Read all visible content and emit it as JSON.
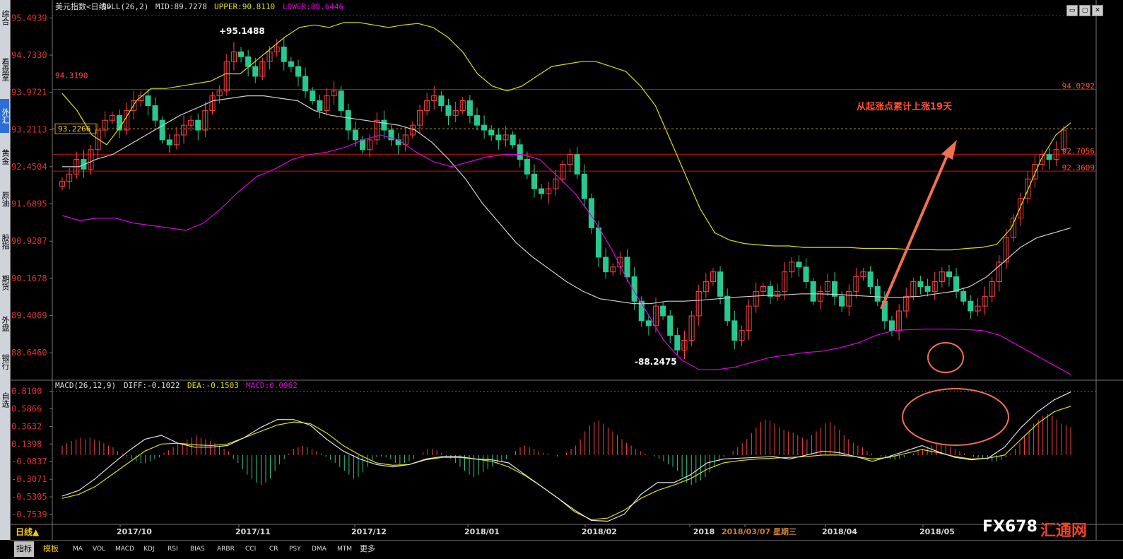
{
  "left_tabs": [
    "综合",
    "看盘室",
    "外汇",
    "黄金",
    "原油",
    "股指",
    "期货",
    "外盘",
    "银行",
    "自选"
  ],
  "left_active": 2,
  "main_header": {
    "name": "美元指数",
    "period": "<日线>",
    "boll": "BOLL(26,2)",
    "mid": "MID:89.7278",
    "upper": "UPPER:90.8110",
    "lower": "LOWER:88.6446"
  },
  "macd_header": {
    "name": "MACD(26,12,9)",
    "diff": "DIFF:-0.1022",
    "dea": "DEA:-0.1503",
    "macd": "MACD:0.0962"
  },
  "colors": {
    "up": "#ff4040",
    "down": "#26c98f",
    "upper": "#dede00",
    "mid": "#cfcfcf",
    "lower": "#e000e0",
    "hline": "#d01010",
    "arrow": "#f07050",
    "dea": "#e0e000",
    "diff": "#e0e0e0"
  },
  "chart_data": [
    {
      "type": "candlestick",
      "title": "美元指数<日线>",
      "ylim": [
        88.2,
        95.6
      ],
      "y_ticks": [
        "95.4939",
        "94.7330",
        "93.9721",
        "93.2113",
        "92.4504",
        "91.6895",
        "90.9287",
        "90.1678",
        "89.4069",
        "88.6460"
      ],
      "x_ticks": [
        "2017/10",
        "2017/11",
        "2017/12",
        "2018/01",
        "2018/02",
        "2018",
        "2018/03/07 星期三",
        "2018/04",
        "2018/05"
      ],
      "annotations": {
        "high": "95.1488",
        "low": "88.2475",
        "note": "从起涨点累计上涨19天",
        "level_left": "94.3190",
        "cursor_box": "93.2266",
        "right_levels": [
          "94.0292",
          "92.7056",
          "92.3609"
        ]
      },
      "closes": [
        92.15,
        92.3,
        92.6,
        92.4,
        92.8,
        93.2,
        93.4,
        93.5,
        93.2,
        93.6,
        93.8,
        93.9,
        93.7,
        93.4,
        93.0,
        92.9,
        93.1,
        93.3,
        93.4,
        93.2,
        93.6,
        93.9,
        94.0,
        94.6,
        94.8,
        94.7,
        94.5,
        94.3,
        94.6,
        94.8,
        94.9,
        94.6,
        94.5,
        94.3,
        94.0,
        93.8,
        93.6,
        93.9,
        94.0,
        93.6,
        93.2,
        93.0,
        92.8,
        93.0,
        93.4,
        93.2,
        93.0,
        92.9,
        93.1,
        93.3,
        93.6,
        93.8,
        93.9,
        93.7,
        93.5,
        93.6,
        93.8,
        93.5,
        93.3,
        93.2,
        93.1,
        93.0,
        93.1,
        92.9,
        92.6,
        92.3,
        92.0,
        91.9,
        92.0,
        92.2,
        92.5,
        92.7,
        92.3,
        91.8,
        91.2,
        90.6,
        90.3,
        90.4,
        90.6,
        90.2,
        89.7,
        89.3,
        89.2,
        89.6,
        89.4,
        89.0,
        88.7,
        88.9,
        89.4,
        89.9,
        90.1,
        90.3,
        89.8,
        89.3,
        88.9,
        89.1,
        89.6,
        89.9,
        90.0,
        89.8,
        89.9,
        90.3,
        90.5,
        90.4,
        90.1,
        89.7,
        89.9,
        90.1,
        89.8,
        89.6,
        89.9,
        90.2,
        90.3,
        90.0,
        89.7,
        89.3,
        89.1,
        89.5,
        89.8,
        90.1,
        90.0,
        89.9,
        90.1,
        90.3,
        90.2,
        89.9,
        89.7,
        89.5,
        89.6,
        89.8,
        90.1,
        90.5,
        91.0,
        91.4,
        91.8,
        92.2,
        92.5,
        92.7,
        92.6,
        92.8,
        93.2
      ],
      "upper_band": [
        93.95,
        93.6,
        93.1,
        92.9,
        93.3,
        93.8,
        94.05,
        94.05,
        94.1,
        94.15,
        94.2,
        94.35,
        94.35,
        94.6,
        94.85,
        95.1,
        95.3,
        95.35,
        95.3,
        95.4,
        95.4,
        95.35,
        95.3,
        95.35,
        95.38,
        95.3,
        95.1,
        94.8,
        94.35,
        94.1,
        94.0,
        94.1,
        94.3,
        94.5,
        94.55,
        94.6,
        94.6,
        94.5,
        94.4,
        94.1,
        93.7,
        93.0,
        92.3,
        91.6,
        91.1,
        90.95,
        90.88,
        90.85,
        90.83,
        90.83,
        90.8,
        90.8,
        90.8,
        90.8,
        90.78,
        90.78,
        90.78,
        90.76,
        90.76,
        90.75,
        90.75,
        90.78,
        90.8,
        90.86,
        91.2,
        91.9,
        92.6,
        93.1,
        93.35
      ],
      "mid_band": [
        92.45,
        92.45,
        92.6,
        92.7,
        92.9,
        93.1,
        93.3,
        93.5,
        93.65,
        93.8,
        93.85,
        93.9,
        93.9,
        93.85,
        93.8,
        93.6,
        93.5,
        93.45,
        93.4,
        93.35,
        93.3,
        93.2,
        92.95,
        92.6,
        92.2,
        91.7,
        91.3,
        90.9,
        90.6,
        90.35,
        90.1,
        89.9,
        89.75,
        89.7,
        89.65,
        89.65,
        89.7,
        89.7,
        89.72,
        89.75,
        89.78,
        89.8,
        89.82,
        89.83,
        89.85,
        89.85,
        89.84,
        89.82,
        89.8,
        89.78,
        89.78,
        89.8,
        89.85,
        89.9,
        90.0,
        90.2,
        90.5,
        90.8,
        91.0,
        91.1,
        91.2
      ],
      "lower_band": [
        91.45,
        91.35,
        91.4,
        91.4,
        91.3,
        91.25,
        91.2,
        91.15,
        91.3,
        91.6,
        91.95,
        92.25,
        92.4,
        92.6,
        92.7,
        92.75,
        92.85,
        93.0,
        93.1,
        93.0,
        92.75,
        92.55,
        92.45,
        92.55,
        92.65,
        92.7,
        92.7,
        92.6,
        92.25,
        91.9,
        91.4,
        90.8,
        90.1,
        89.5,
        88.9,
        88.5,
        88.3,
        88.3,
        88.35,
        88.45,
        88.55,
        88.6,
        88.65,
        88.68,
        88.75,
        88.85,
        89.0,
        89.1,
        89.12,
        89.13,
        89.13,
        89.12,
        89.1,
        89.0,
        88.8,
        88.6,
        88.4,
        88.2
      ]
    },
    {
      "type": "macd",
      "ylim": [
        -0.88,
        0.86
      ],
      "y_ticks": [
        "0.8100",
        "0.5866",
        "0.3632",
        "0.1398",
        "-0.0837",
        "-0.3071",
        "-0.5305",
        "-0.7539"
      ],
      "diff": [
        -0.52,
        -0.45,
        -0.3,
        -0.12,
        0.05,
        0.2,
        0.25,
        0.15,
        0.1,
        0.1,
        0.12,
        0.22,
        0.35,
        0.45,
        0.45,
        0.38,
        0.2,
        0.05,
        -0.05,
        -0.12,
        -0.15,
        -0.12,
        -0.05,
        -0.02,
        -0.02,
        -0.05,
        -0.06,
        -0.1,
        -0.25,
        -0.4,
        -0.55,
        -0.7,
        -0.83,
        -0.84,
        -0.75,
        -0.5,
        -0.35,
        -0.35,
        -0.25,
        -0.1,
        -0.05,
        -0.04,
        -0.03,
        -0.02,
        -0.05,
        0.0,
        0.05,
        0.03,
        -0.02,
        -0.08,
        -0.02,
        0.05,
        0.12,
        0.04,
        -0.03,
        -0.06,
        -0.04,
        0.1,
        0.35,
        0.55,
        0.7,
        0.8
      ],
      "dea": [
        -0.55,
        -0.5,
        -0.4,
        -0.25,
        -0.1,
        0.05,
        0.14,
        0.15,
        0.13,
        0.12,
        0.14,
        0.22,
        0.3,
        0.38,
        0.42,
        0.4,
        0.28,
        0.12,
        0.0,
        -0.1,
        -0.13,
        -0.12,
        -0.06,
        -0.03,
        -0.03,
        -0.05,
        -0.08,
        -0.15,
        -0.26,
        -0.4,
        -0.55,
        -0.72,
        -0.82,
        -0.8,
        -0.7,
        -0.55,
        -0.45,
        -0.38,
        -0.3,
        -0.18,
        -0.1,
        -0.07,
        -0.05,
        -0.04,
        -0.03,
        -0.02,
        0.0,
        0.0,
        -0.02,
        -0.05,
        -0.03,
        0.02,
        0.07,
        0.03,
        -0.02,
        -0.05,
        -0.04,
        0.0,
        0.2,
        0.4,
        0.55,
        0.62
      ],
      "hist": [
        0.12,
        0.15,
        0.18,
        0.2,
        0.22,
        0.2,
        0.22,
        0.2,
        0.18,
        0.15,
        0.12,
        0.1,
        0.05,
        0.02,
        -0.02,
        -0.05,
        -0.08,
        -0.1,
        -0.1,
        -0.08,
        -0.05,
        -0.03,
        0.03,
        0.06,
        0.1,
        0.15,
        0.15,
        0.2,
        0.22,
        0.25,
        0.22,
        0.2,
        0.18,
        0.15,
        0.12,
        0.08,
        0.05,
        -0.05,
        -0.1,
        -0.18,
        -0.25,
        -0.3,
        -0.35,
        -0.38,
        -0.35,
        -0.3,
        -0.2,
        -0.12,
        -0.05,
        0.02,
        0.08,
        0.1,
        0.12,
        0.1,
        0.08,
        0.05,
        0.02,
        -0.02,
        -0.06,
        -0.1,
        -0.15,
        -0.2,
        -0.25,
        -0.3,
        -0.28,
        -0.22,
        -0.15,
        -0.08,
        -0.03,
        -0.02,
        -0.03,
        -0.05,
        -0.1,
        -0.12,
        -0.1,
        -0.08,
        -0.05,
        0.0,
        0.04,
        0.08,
        0.08,
        0.06,
        0.03,
        -0.02,
        -0.05,
        -0.1,
        -0.15,
        -0.2,
        -0.25,
        -0.28,
        -0.25,
        -0.22,
        -0.18,
        -0.15,
        -0.1,
        -0.08,
        -0.05,
        0.0,
        0.05,
        0.1,
        0.12,
        0.1,
        0.08,
        0.05,
        0.03,
        0.02,
        0.0,
        -0.02,
        0.0,
        0.03,
        0.08,
        0.12,
        0.2,
        0.3,
        0.38,
        0.42,
        0.44,
        0.4,
        0.35,
        0.3,
        0.25,
        0.2,
        0.15,
        0.12,
        0.08,
        0.05,
        0.02,
        0.0,
        -0.02,
        -0.05,
        -0.08,
        -0.12,
        -0.15,
        -0.2,
        -0.28,
        -0.35,
        -0.38,
        -0.35,
        -0.32,
        -0.28,
        -0.22,
        -0.15,
        -0.08,
        -0.02,
        0.0,
        0.05,
        0.1,
        0.15,
        0.2,
        0.28,
        0.35,
        0.42,
        0.45,
        0.44,
        0.4,
        0.35,
        0.32,
        0.3,
        0.28,
        0.25,
        0.22,
        0.2,
        0.25,
        0.3,
        0.35,
        0.4,
        0.42,
        0.38,
        0.32,
        0.25,
        0.2,
        0.15,
        0.12,
        0.1,
        0.05,
        0.02,
        0.0,
        -0.02,
        -0.03,
        -0.05,
        -0.06,
        -0.05,
        -0.03,
        0.0,
        0.02,
        0.05,
        0.08,
        0.1,
        0.12,
        0.14,
        0.15,
        0.12,
        0.1,
        0.08,
        0.05,
        0.02,
        0.0,
        -0.02,
        -0.04,
        -0.05,
        -0.06,
        -0.08,
        -0.08,
        -0.06,
        -0.03,
        0.02,
        0.08,
        0.15,
        0.25,
        0.32,
        0.4,
        0.45,
        0.5,
        0.52,
        0.5,
        0.45,
        0.4,
        0.38,
        0.35
      ]
    }
  ],
  "bottom": {
    "period_label": "日线▲",
    "tabs": [
      "指标",
      "模板",
      "MA",
      "VOL",
      "MACD",
      "KDJ",
      "RSI",
      "BIAS",
      "ARBR",
      "CCI",
      "CR",
      "PSY",
      "DMA",
      "MTM",
      "更多"
    ],
    "logo": "FX678",
    "logo_cn": "汇通网"
  }
}
